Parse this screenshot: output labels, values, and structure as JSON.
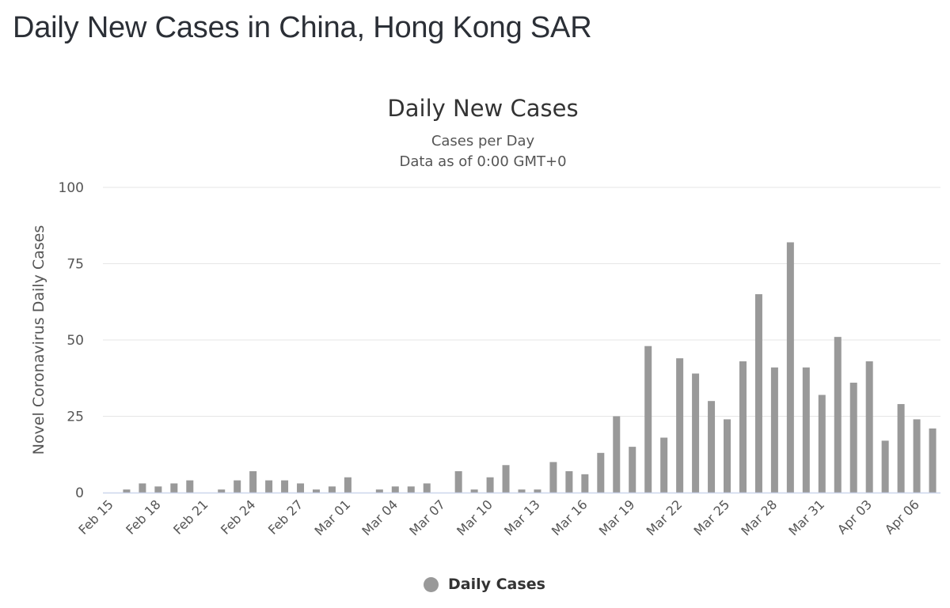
{
  "page": {
    "title": "Daily New Cases in China, Hong Kong SAR"
  },
  "chart_data": {
    "type": "bar",
    "title": "Daily New Cases",
    "subtitle_lines": [
      "Cases per Day",
      "Data as of 0:00 GMT+0"
    ],
    "ylabel": "Novel Coronavirus Daily Cases",
    "xlabel": "",
    "ylim": [
      0,
      100
    ],
    "yticks": [
      0,
      25,
      50,
      75,
      100
    ],
    "grid": true,
    "legend_position": "bottom-center",
    "bar_color": "#999999",
    "x_tick_labels": [
      "Feb 15",
      "Feb 18",
      "Feb 21",
      "Feb 24",
      "Feb 27",
      "Mar 01",
      "Mar 04",
      "Mar 07",
      "Mar 10",
      "Mar 13",
      "Mar 16",
      "Mar 19",
      "Mar 22",
      "Mar 25",
      "Mar 28",
      "Mar 31",
      "Apr 03",
      "Apr 06"
    ],
    "categories": [
      "Feb 15",
      "Feb 16",
      "Feb 17",
      "Feb 18",
      "Feb 19",
      "Feb 20",
      "Feb 21",
      "Feb 22",
      "Feb 23",
      "Feb 24",
      "Feb 25",
      "Feb 26",
      "Feb 27",
      "Feb 28",
      "Feb 29",
      "Mar 01",
      "Mar 02",
      "Mar 03",
      "Mar 04",
      "Mar 05",
      "Mar 06",
      "Mar 07",
      "Mar 08",
      "Mar 09",
      "Mar 10",
      "Mar 11",
      "Mar 12",
      "Mar 13",
      "Mar 14",
      "Mar 15",
      "Mar 16",
      "Mar 17",
      "Mar 18",
      "Mar 19",
      "Mar 20",
      "Mar 21",
      "Mar 22",
      "Mar 23",
      "Mar 24",
      "Mar 25",
      "Mar 26",
      "Mar 27",
      "Mar 28",
      "Mar 29",
      "Mar 30",
      "Mar 31",
      "Apr 01",
      "Apr 02",
      "Apr 03",
      "Apr 04",
      "Apr 05",
      "Apr 06",
      "Apr 07"
    ],
    "series": [
      {
        "name": "Daily Cases",
        "values": [
          0,
          1,
          3,
          2,
          3,
          4,
          0,
          1,
          4,
          7,
          4,
          4,
          3,
          1,
          2,
          5,
          0,
          1,
          2,
          2,
          3,
          0,
          7,
          1,
          5,
          9,
          1,
          1,
          10,
          7,
          6,
          13,
          25,
          15,
          48,
          18,
          44,
          39,
          30,
          24,
          43,
          65,
          41,
          82,
          41,
          32,
          51,
          36,
          43,
          17,
          29,
          24,
          21
        ]
      }
    ]
  }
}
